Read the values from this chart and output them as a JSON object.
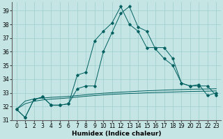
{
  "xlabel": "Humidex (Indice chaleur)",
  "xlim": [
    -0.5,
    23.5
  ],
  "ylim": [
    31,
    39.6
  ],
  "yticks": [
    31,
    32,
    33,
    34,
    35,
    36,
    37,
    38,
    39
  ],
  "xticks": [
    0,
    1,
    2,
    3,
    4,
    5,
    6,
    7,
    8,
    9,
    10,
    11,
    12,
    13,
    14,
    15,
    16,
    17,
    18,
    19,
    20,
    21,
    22,
    23
  ],
  "bg_color": "#c5e5e5",
  "grid_color": "#9ecece",
  "line_color": "#006060",
  "curve1": [
    31.8,
    31.2,
    32.5,
    32.7,
    32.1,
    32.1,
    32.2,
    33.3,
    33.5,
    33.5,
    36.0,
    37.4,
    38.8,
    39.3,
    37.8,
    37.5,
    36.2,
    35.5,
    35.0,
    33.7,
    33.5,
    33.5,
    33.5,
    32.8
  ],
  "curve2": [
    31.8,
    31.2,
    32.5,
    32.7,
    32.1,
    32.1,
    32.2,
    34.3,
    34.5,
    36.8,
    37.5,
    38.1,
    39.3,
    38.0,
    37.5,
    36.3,
    36.3,
    36.3,
    35.5,
    33.7,
    33.5,
    33.6,
    32.8,
    33.0
  ],
  "flat1": [
    31.8,
    32.4,
    32.55,
    32.62,
    32.67,
    32.7,
    32.74,
    32.8,
    32.86,
    32.92,
    32.97,
    33.01,
    33.05,
    33.08,
    33.12,
    33.15,
    33.17,
    33.2,
    33.22,
    33.24,
    33.26,
    33.27,
    33.28,
    33.3
  ],
  "flat2": [
    31.8,
    32.2,
    32.38,
    32.48,
    32.54,
    32.58,
    32.63,
    32.69,
    32.75,
    32.8,
    32.85,
    32.89,
    32.92,
    32.95,
    32.97,
    33.0,
    33.02,
    33.04,
    33.06,
    33.08,
    33.1,
    33.11,
    33.12,
    33.14
  ],
  "xlabel_fontsize": 6.5,
  "xlabel_fontweight": "bold",
  "tick_fontsize": 5.5
}
